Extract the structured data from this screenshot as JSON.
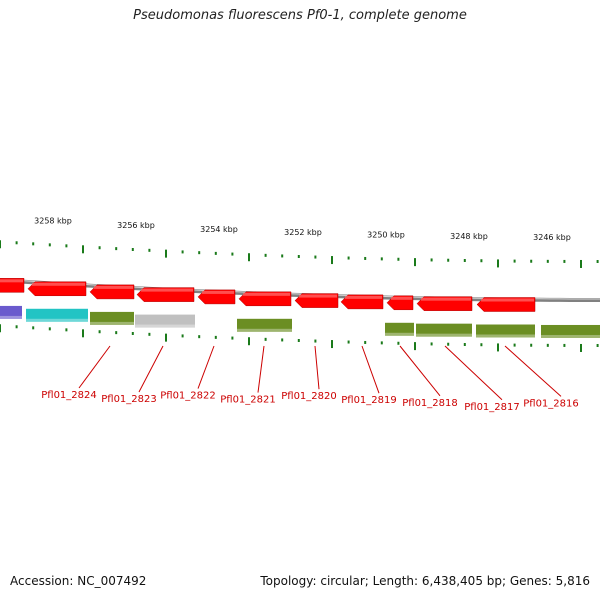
{
  "title": "Pseudomonas fluorescens Pf0-1, complete genome",
  "footer": {
    "accession": "Accession: NC_007492",
    "topology": "Topology: circular; Length: 6,438,405 bp; Genes: 5,816"
  },
  "colors": {
    "backbone": "#808080",
    "forward_cds": "#ff0000",
    "tick": "#1a7a1a",
    "teal_feature": "#22c4c4",
    "olive_feature": "#6b8e23",
    "gray_feature": "#c0c0c0",
    "purple_feature": "#6a5acd",
    "gene_label": "#cc0000",
    "coordinate_label": "#111111"
  },
  "coordinate_labels": [
    "3258 kbp",
    "3256 kbp",
    "3254 kbp",
    "3252 kbp",
    "3250 kbp",
    "3248 kbp",
    "3246 kbp"
  ],
  "gene_labels": [
    "Pfl01_2824",
    "Pfl01_2823",
    "Pfl01_2822",
    "Pfl01_2821",
    "Pfl01_2820",
    "Pfl01_2819",
    "Pfl01_2818",
    "Pfl01_2817",
    "Pfl01_2816"
  ],
  "features": [
    {
      "track": "cds",
      "color": "#ff0000",
      "direction": "left"
    },
    {
      "track": "cds",
      "color": "#ff0000",
      "direction": "left"
    },
    {
      "track": "cds",
      "color": "#ff0000",
      "direction": "left"
    },
    {
      "track": "cds",
      "color": "#ff0000",
      "direction": "left"
    },
    {
      "track": "cds",
      "color": "#ff0000",
      "direction": "left"
    },
    {
      "track": "cds",
      "color": "#ff0000",
      "direction": "left"
    },
    {
      "track": "cds",
      "color": "#ff0000",
      "direction": "left"
    },
    {
      "track": "cds",
      "color": "#ff0000",
      "direction": "left"
    },
    {
      "track": "cds",
      "color": "#ff0000",
      "direction": "left"
    },
    {
      "track": "cds",
      "color": "#ff0000",
      "direction": "left"
    },
    {
      "track": "cds",
      "color": "#ff0000",
      "direction": "left"
    },
    {
      "track": "annot",
      "color": "#6a5acd"
    },
    {
      "track": "annot",
      "color": "#22c4c4"
    },
    {
      "track": "annot",
      "color": "#6b8e23"
    },
    {
      "track": "annot",
      "color": "#c0c0c0"
    },
    {
      "track": "annot",
      "color": "#6b8e23"
    },
    {
      "track": "annot",
      "color": "#6b8e23"
    },
    {
      "track": "annot",
      "color": "#6b8e23"
    },
    {
      "track": "annot",
      "color": "#6b8e23"
    },
    {
      "track": "annot",
      "color": "#6b8e23"
    }
  ]
}
